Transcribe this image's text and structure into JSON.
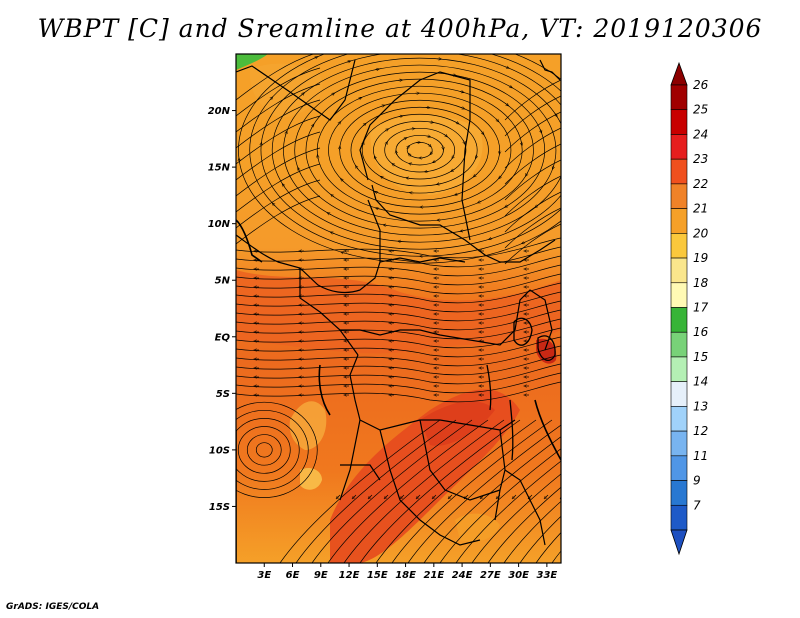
{
  "title": "WBPT [C] and Sreamline at 400hPa, VT: 2019120306",
  "credit": "GrADS: IGES/COLA",
  "map": {
    "variable": "WBPT",
    "units": "C",
    "level": "400hPa",
    "valid_time": "2019120306",
    "lon_range": [
      0,
      34.5
    ],
    "lat_range": [
      -20,
      25
    ],
    "lat_ticks": [
      "20N",
      "15N",
      "10N",
      "5N",
      "EQ",
      "5S",
      "10S",
      "15S"
    ],
    "lat_values": [
      20,
      15,
      10,
      5,
      0,
      -5,
      -10,
      -15
    ],
    "lon_ticks": [
      "3E",
      "6E",
      "9E",
      "12E",
      "15E",
      "18E",
      "21E",
      "24E",
      "27E",
      "30E",
      "33E"
    ],
    "lon_values": [
      3,
      6,
      9,
      12,
      15,
      18,
      21,
      24,
      27,
      30,
      33
    ],
    "anticyclone_center": {
      "lon": 19.5,
      "lat": 16.5
    },
    "cyclonic_vortex_center": {
      "lon": 3,
      "lat": -10
    }
  },
  "colorbar": {
    "labels": [
      "26",
      "25",
      "24",
      "23",
      "22",
      "21",
      "20",
      "19",
      "18",
      "17",
      "16",
      "15",
      "14",
      "13",
      "12",
      "11",
      "9",
      "7"
    ],
    "colors": [
      "#a00000",
      "#c80000",
      "#e61e1e",
      "#f0501e",
      "#f08228",
      "#f5a028",
      "#fac83c",
      "#fae68c",
      "#fffab4",
      "#37b437",
      "#78d278",
      "#b4f0b4",
      "#e6f0fa",
      "#a0d2fa",
      "#78b4f0",
      "#5096e6",
      "#2878d2",
      "#1e5ac8"
    ]
  }
}
